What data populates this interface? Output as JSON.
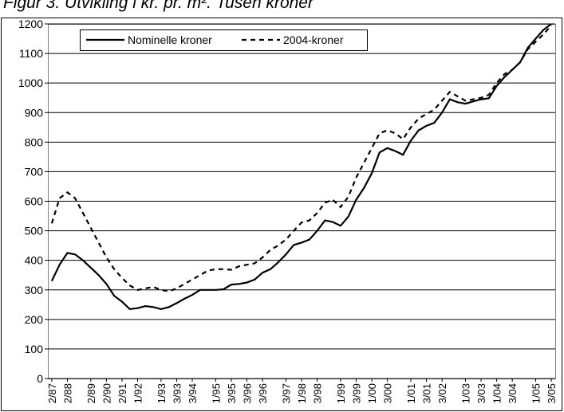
{
  "chart_data": {
    "type": "line",
    "title": "Figur 3. Utvikling i kr. pr. m². Tusen kroner",
    "categories": [
      "2/87",
      null,
      "2/88",
      null,
      null,
      "2/89",
      null,
      "2/90",
      null,
      "2/91",
      null,
      "1/92",
      null,
      null,
      "1/93",
      null,
      "3/93",
      null,
      "3/94",
      null,
      null,
      "1/95",
      null,
      "3/95",
      null,
      "3/96",
      null,
      "3/96",
      null,
      null,
      "3/97",
      null,
      "1/98",
      null,
      "3/98",
      null,
      null,
      "1/99",
      null,
      "3/99",
      null,
      "1/00",
      null,
      "3/00",
      null,
      null,
      "1/01",
      null,
      "3/01",
      null,
      "3/02",
      null,
      null,
      "1/03",
      null,
      "3/03",
      null,
      "1/04",
      null,
      "3/04",
      null,
      null,
      "1/05",
      null,
      "3/05"
    ],
    "series": [
      {
        "name": "Nominelle kroner",
        "color": "#000000",
        "dash": false,
        "values": [
          330,
          385,
          425,
          420,
          400,
          375,
          350,
          320,
          280,
          260,
          235,
          238,
          245,
          242,
          235,
          242,
          255,
          270,
          283,
          300,
          300,
          300,
          302,
          318,
          320,
          325,
          335,
          358,
          370,
          393,
          420,
          452,
          460,
          470,
          500,
          535,
          530,
          517,
          548,
          605,
          645,
          695,
          765,
          780,
          770,
          757,
          805,
          840,
          855,
          865,
          900,
          945,
          935,
          930,
          938,
          945,
          948,
          990,
          1020,
          1045,
          1070,
          1120,
          1150,
          1180,
          1200
        ]
      },
      {
        "name": "2004-kroner",
        "color": "#000000",
        "dash": true,
        "values": [
          525,
          610,
          630,
          610,
          560,
          510,
          460,
          410,
          370,
          340,
          315,
          300,
          305,
          310,
          300,
          295,
          305,
          320,
          335,
          350,
          365,
          370,
          370,
          368,
          380,
          385,
          390,
          410,
          435,
          450,
          470,
          500,
          528,
          535,
          560,
          595,
          605,
          580,
          615,
          680,
          730,
          780,
          830,
          840,
          830,
          810,
          850,
          880,
          895,
          910,
          940,
          970,
          955,
          940,
          945,
          950,
          960,
          1000,
          1030,
          1045,
          1070,
          1115,
          1140,
          1165,
          1195
        ]
      }
    ],
    "ylim": [
      0,
      1200
    ],
    "yticks": [
      0,
      100,
      200,
      300,
      400,
      500,
      600,
      700,
      800,
      900,
      1000,
      1100,
      1200
    ],
    "grid": true
  }
}
